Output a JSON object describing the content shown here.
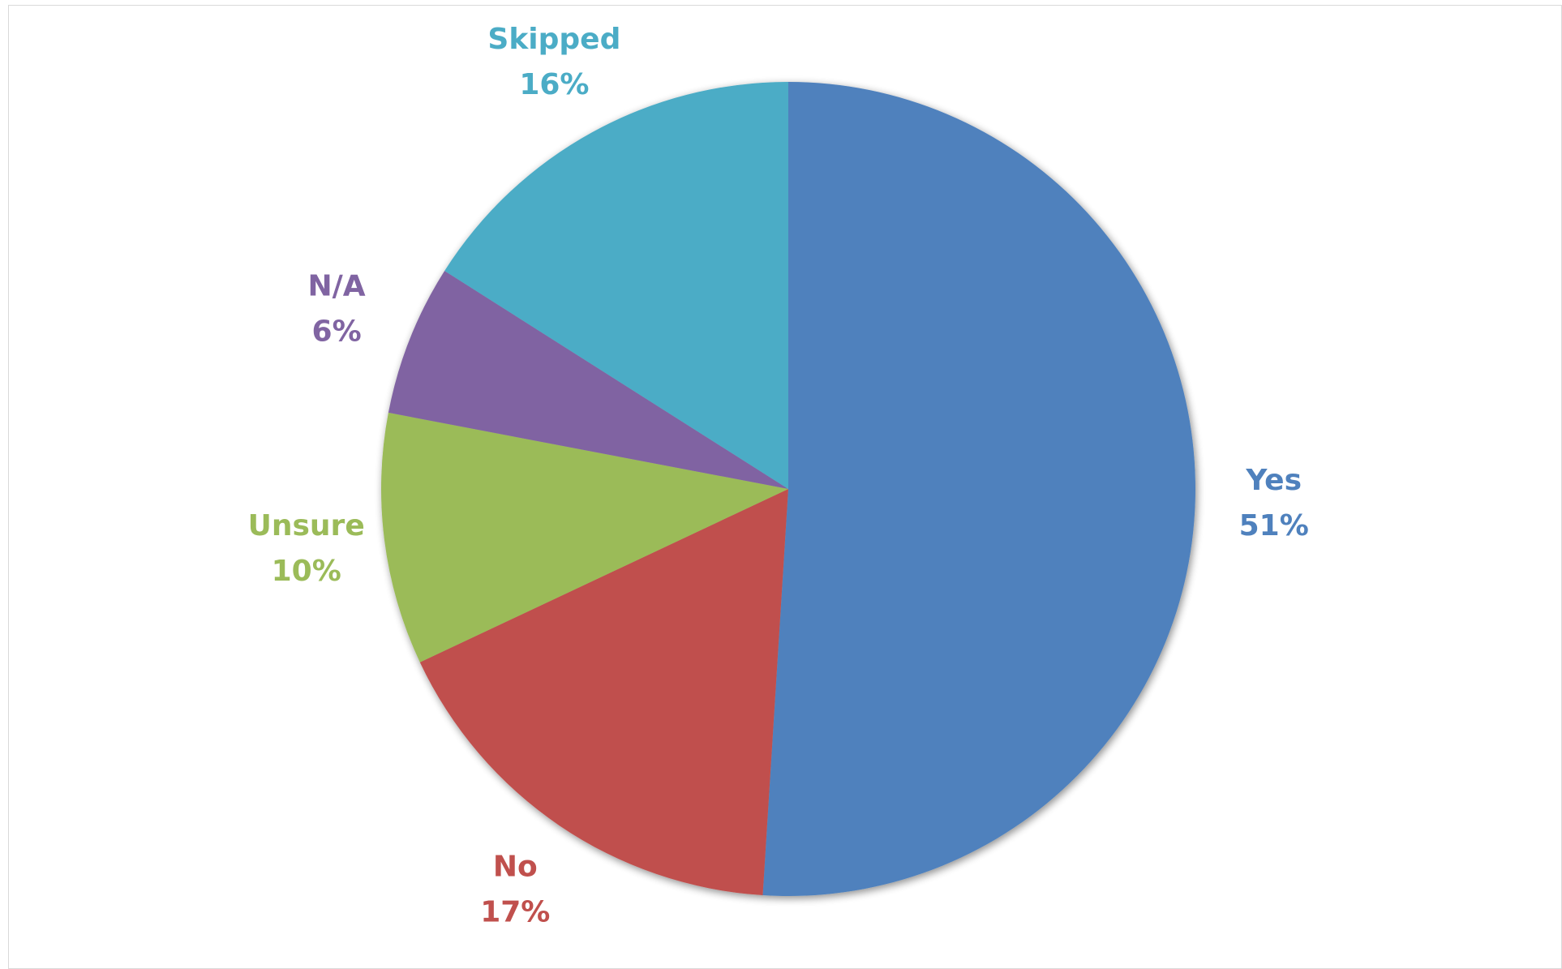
{
  "chart_data": {
    "type": "pie",
    "title": "",
    "slices": [
      {
        "label": "Yes",
        "value": 51,
        "value_label": "51%",
        "color": "#4F81BD"
      },
      {
        "label": "No",
        "value": 17,
        "value_label": "17%",
        "color": "#C0504D"
      },
      {
        "label": "Unsure",
        "value": 10,
        "value_label": "10%",
        "color": "#9BBB59"
      },
      {
        "label": "N/A",
        "value": 6,
        "value_label": "6%",
        "color": "#8064A2"
      },
      {
        "label": "Skipped",
        "value": 16,
        "value_label": "16%",
        "color": "#4BACC6"
      }
    ],
    "start": "12 o'clock",
    "direction": "clockwise",
    "legend": "none",
    "data_labels": "outside"
  }
}
